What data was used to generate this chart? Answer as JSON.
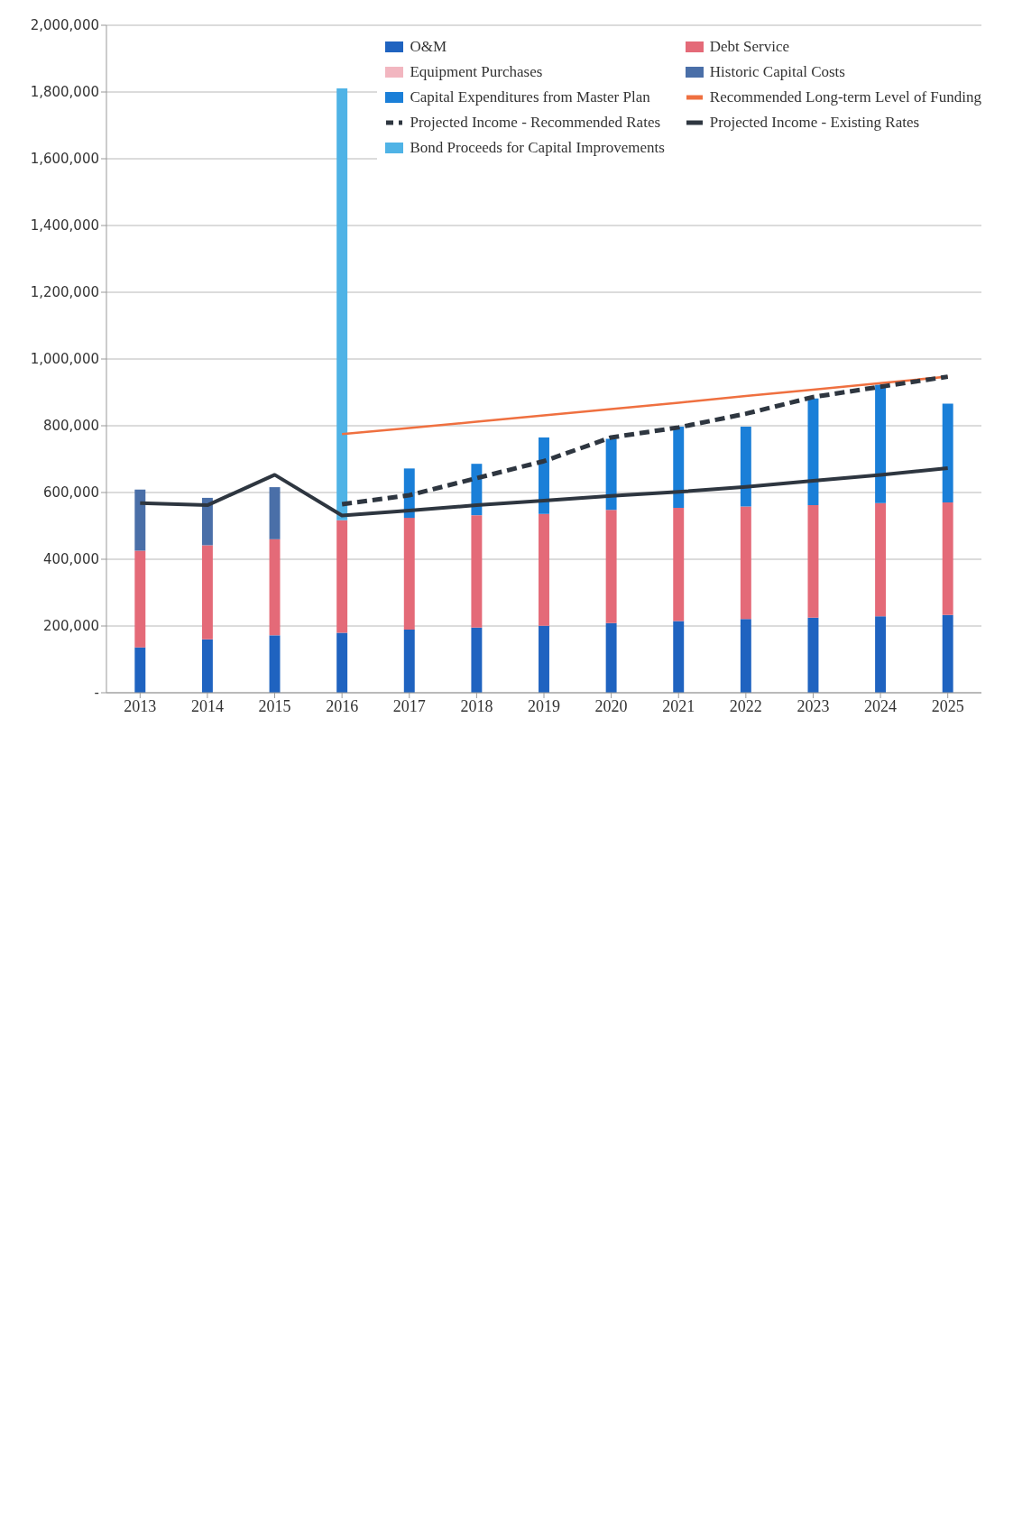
{
  "chart_data": {
    "type": "bar",
    "stacked": true,
    "categories": [
      "2013",
      "2014",
      "2015",
      "2016",
      "2017",
      "2018",
      "2019",
      "2020",
      "2021",
      "2022",
      "2023",
      "2024",
      "2025"
    ],
    "series": [
      {
        "name": "O&M",
        "type": "bar",
        "color": "#1f63c0",
        "values": [
          136000,
          160000,
          172000,
          180000,
          189000,
          195000,
          201000,
          209000,
          215000,
          221000,
          225000,
          229000,
          233000
        ]
      },
      {
        "name": "Debt Service",
        "type": "bar",
        "color": "#e46a78",
        "values": [
          290000,
          282000,
          288000,
          337000,
          335000,
          337000,
          335000,
          339000,
          339000,
          337000,
          337000,
          339000,
          337000
        ]
      },
      {
        "name": "Equipment Purchases",
        "type": "bar",
        "color": "#f2b6c0",
        "values": [
          0,
          0,
          0,
          0,
          0,
          0,
          0,
          0,
          0,
          0,
          0,
          0,
          0
        ]
      },
      {
        "name": "Historic Capital Costs",
        "type": "bar",
        "color": "#4a6fa8",
        "values": [
          183000,
          142000,
          156000,
          null,
          null,
          null,
          null,
          null,
          null,
          null,
          null,
          null,
          null
        ]
      },
      {
        "name": "Capital Expenditures from Master Plan",
        "type": "bar",
        "color": "#1a7fd8",
        "values": [
          null,
          null,
          null,
          null,
          148000,
          154000,
          229000,
          213000,
          243000,
          239000,
          320000,
          355000,
          296000
        ]
      },
      {
        "name": "Recommended Long-term Level of Funding",
        "type": "line",
        "color": "#ef7040",
        "line_style": "solid",
        "values": [
          null,
          null,
          null,
          775000,
          793000,
          812000,
          831000,
          850000,
          869000,
          889000,
          908000,
          928000,
          947000
        ]
      },
      {
        "name": "Projected Income - Recommended Rates",
        "type": "line",
        "color": "#2e3640",
        "line_style": "dashed",
        "values": [
          null,
          null,
          null,
          565000,
          592000,
          643000,
          694000,
          765000,
          795000,
          836000,
          886000,
          917000,
          947000
        ]
      },
      {
        "name": "Projected Income - Existing Rates",
        "type": "line",
        "color": "#2e3640",
        "line_style": "solid",
        "values": [
          568000,
          562000,
          653000,
          531000,
          546000,
          562000,
          576000,
          590000,
          602000,
          617000,
          635000,
          653000,
          673000
        ]
      },
      {
        "name": "Bond Proceeds for Capital Improvements",
        "type": "bar",
        "color": "#4fb3e6",
        "values": [
          null,
          null,
          null,
          1294000,
          null,
          null,
          null,
          null,
          null,
          null,
          null,
          null,
          null
        ]
      }
    ],
    "ylim": [
      0,
      2000000
    ],
    "yticks": [
      {
        "value": 0,
        "label": "-"
      },
      {
        "value": 200000,
        "label": "200,000"
      },
      {
        "value": 400000,
        "label": "400,000"
      },
      {
        "value": 600000,
        "label": "600,000"
      },
      {
        "value": 800000,
        "label": "800,000"
      },
      {
        "value": 1000000,
        "label": "1,000,000"
      },
      {
        "value": 1200000,
        "label": "1,200,000"
      },
      {
        "value": 1400000,
        "label": "1,400,000"
      },
      {
        "value": 1600000,
        "label": "1,600,000"
      },
      {
        "value": 1800000,
        "label": "1,800,000"
      },
      {
        "value": 2000000,
        "label": "2,000,000"
      }
    ],
    "grid": "y",
    "legend": "top right",
    "marker": "none"
  }
}
